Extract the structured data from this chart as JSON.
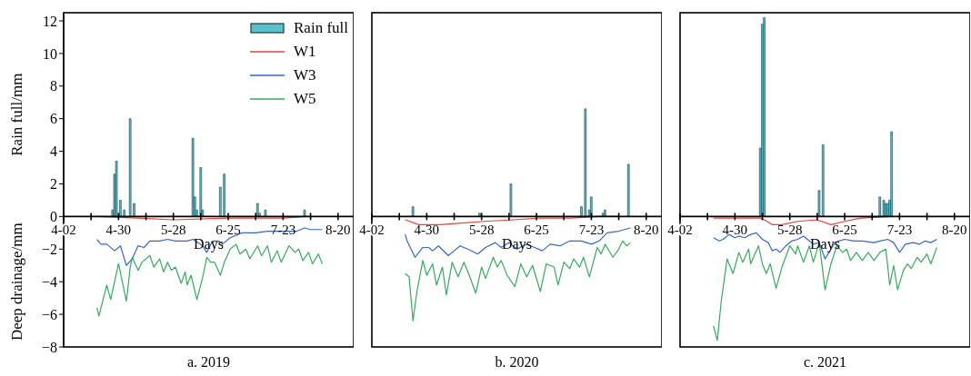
{
  "chart_data": [
    {
      "type": "line",
      "title": "a. 2019",
      "xlabel": "Days",
      "ylabel": "Rain full/mm",
      "annotations": [
        "Deep drainage/mm"
      ],
      "legend": "top right",
      "xlim": [
        "--04-02",
        "--08-28"
      ],
      "xticks": [
        {
          "value": "--04-02",
          "label": "4-02"
        },
        {
          "value": "--04-16",
          "label": null
        },
        {
          "value": "--04-30",
          "label": "4-30"
        },
        {
          "value": "--05-14",
          "label": null
        },
        {
          "value": "--05-28",
          "label": "5-28"
        },
        {
          "value": "--06-11",
          "label": null
        },
        {
          "value": "--06-25",
          "label": "6-25"
        },
        {
          "value": "--07-09",
          "label": null
        },
        {
          "value": "--07-23",
          "label": "7-23"
        },
        {
          "value": "--08-06",
          "label": null
        },
        {
          "value": "--08-20",
          "label": "8-20"
        }
      ],
      "ylim": [
        -8,
        12.5
      ],
      "yticks": [
        -8,
        -6,
        -4,
        -2,
        0,
        2,
        4,
        6,
        8,
        10,
        12
      ],
      "series": [
        {
          "name": "Rain full",
          "type": "bar",
          "color": "#5bc0cc",
          "x": [
            "--04-27",
            "--04-28",
            "--04-29",
            "--05-01",
            "--05-03",
            "--05-06",
            "--05-08",
            "--06-07",
            "--06-08",
            "--06-09",
            "--06-11",
            "--06-12",
            "--06-21",
            "--06-23",
            "--07-10",
            "--07-11",
            "--07-14",
            "--08-03"
          ],
          "values": [
            0.4,
            2.6,
            3.4,
            1.0,
            0.4,
            6.0,
            0.8,
            4.8,
            1.2,
            0.4,
            3.0,
            0.4,
            1.8,
            2.6,
            0.8,
            0.2,
            0.4,
            0.4
          ]
        },
        {
          "name": "W1",
          "color": "#e8423a",
          "x": [
            "--04-19",
            "--05-10",
            "--05-28",
            "--06-25",
            "--07-23",
            "--08-04"
          ],
          "values": [
            0,
            -0.1,
            -0.2,
            -0.1,
            -0.1,
            0
          ]
        },
        {
          "name": "W3",
          "color": "#3a66c4",
          "x": [
            "--04-19",
            "--04-21",
            "--04-24",
            "--04-28",
            "--05-01",
            "--05-04",
            "--05-07",
            "--05-10",
            "--05-13",
            "--05-16",
            "--05-21",
            "--05-25",
            "--05-29",
            "--06-04",
            "--06-07",
            "--06-12",
            "--06-14",
            "--06-17",
            "--06-20",
            "--06-22",
            "--06-26",
            "--07-02",
            "--07-09",
            "--07-15",
            "--07-23",
            "--07-30",
            "--08-03",
            "--08-06",
            "--08-12"
          ],
          "values": [
            -1.4,
            -1.7,
            -1.7,
            -2.1,
            -1.8,
            -3.0,
            -2.6,
            -1.8,
            -1.9,
            -1.5,
            -1.5,
            -1.4,
            -1.5,
            -1.5,
            -1.4,
            -1.8,
            -2.2,
            -1.5,
            -1.5,
            -1.7,
            -1.3,
            -1.0,
            -1.0,
            -0.9,
            -0.9,
            -0.9,
            -0.7,
            -0.8,
            -0.8
          ]
        },
        {
          "name": "W5",
          "color": "#3aa860",
          "x": [
            "--04-19",
            "--04-20",
            "--04-24",
            "--04-26",
            "--04-30",
            "--05-04",
            "--05-06",
            "--05-07",
            "--05-10",
            "--05-12",
            "--05-16",
            "--05-18",
            "--05-21",
            "--05-23",
            "--05-25",
            "--05-27",
            "--05-29",
            "--06-01",
            "--06-03",
            "--06-04",
            "--06-06",
            "--06-09",
            "--06-12",
            "--06-14",
            "--06-16",
            "--06-18",
            "--06-21",
            "--06-23",
            "--06-26",
            "--06-29",
            "--07-01",
            "--07-04",
            "--07-06",
            "--07-10",
            "--07-12",
            "--07-15",
            "--07-17",
            "--07-20",
            "--07-22",
            "--07-26",
            "--07-29",
            "--07-31",
            "--08-02",
            "--08-05",
            "--08-07",
            "--08-10",
            "--08-12"
          ],
          "values": [
            -5.6,
            -6.1,
            -4.2,
            -5.1,
            -2.9,
            -5.2,
            -3.1,
            -2.5,
            -3.3,
            -2.8,
            -2.4,
            -3.1,
            -2.6,
            -3.4,
            -2.8,
            -3.3,
            -3.1,
            -4.1,
            -3.4,
            -4.2,
            -3.6,
            -5.1,
            -3.7,
            -2.5,
            -2.8,
            -2.8,
            -3.6,
            -2.8,
            -2.0,
            -1.7,
            -2.3,
            -2.0,
            -2.6,
            -1.8,
            -2.4,
            -1.8,
            -2.8,
            -2.1,
            -2.8,
            -1.8,
            -2.2,
            -2.0,
            -2.7,
            -2.2,
            -2.9,
            -2.3,
            -2.9
          ]
        }
      ]
    },
    {
      "type": "line",
      "title": "b. 2020",
      "xlabel": "Days",
      "tick_labels": "x",
      "xlim": [
        "--04-02",
        "--08-28"
      ],
      "xticks": [
        {
          "value": "--04-02",
          "label": "4-02"
        },
        {
          "value": "--04-16",
          "label": null
        },
        {
          "value": "--04-30",
          "label": "4-30"
        },
        {
          "value": "--05-14",
          "label": null
        },
        {
          "value": "--05-28",
          "label": "5-28"
        },
        {
          "value": "--06-11",
          "label": null
        },
        {
          "value": "--06-25",
          "label": "6-25"
        },
        {
          "value": "--07-09",
          "label": null
        },
        {
          "value": "--07-23",
          "label": "7-23"
        },
        {
          "value": "--08-06",
          "label": null
        },
        {
          "value": "--08-20",
          "label": "8-20"
        }
      ],
      "ylim": [
        -8,
        12.5
      ],
      "yticks": [
        -8,
        -6,
        -4,
        -2,
        0,
        2,
        4,
        6,
        8,
        10,
        12
      ],
      "series": [
        {
          "type": "bar",
          "color": "#5bc0cc",
          "x": [
            "--04-23",
            "--05-27",
            "--06-12",
            "--07-18",
            "--07-20",
            "--07-22",
            "--07-23",
            "--07-29",
            "--07-30",
            "--08-11"
          ],
          "values": [
            0.6,
            0.2,
            2.0,
            0.6,
            6.6,
            0.4,
            1.2,
            0.2,
            0.4,
            3.2
          ]
        },
        {
          "color": "#e8423a",
          "x": [
            "--04-19",
            "--04-26",
            "--05-07",
            "--05-29",
            "--06-13",
            "--06-27",
            "--07-12",
            "--07-27",
            "--08-06"
          ],
          "values": [
            -0.2,
            -0.5,
            -0.5,
            -0.3,
            -0.2,
            -0.1,
            -0.1,
            0,
            0
          ]
        },
        {
          "color": "#3a66c4",
          "x": [
            "--04-19",
            "--04-20",
            "--04-22",
            "--04-24",
            "--04-28",
            "--05-01",
            "--05-03",
            "--05-06",
            "--05-11",
            "--05-14",
            "--05-17",
            "--05-21",
            "--05-26",
            "--05-30",
            "--06-04",
            "--06-07",
            "--06-11",
            "--06-15",
            "--06-20",
            "--06-24",
            "--06-28",
            "--07-02",
            "--07-07",
            "--07-12",
            "--07-18",
            "--07-23",
            "--07-27",
            "--07-31",
            "--08-06",
            "--08-12"
          ],
          "values": [
            -1.1,
            -1.5,
            -2.0,
            -2.5,
            -1.9,
            -1.9,
            -2.1,
            -1.8,
            -2.4,
            -2.1,
            -1.8,
            -2.0,
            -2.3,
            -1.9,
            -1.6,
            -1.9,
            -1.6,
            -2.0,
            -1.7,
            -1.9,
            -2.1,
            -1.7,
            -1.8,
            -1.5,
            -1.5,
            -1.7,
            -1.5,
            -1.0,
            -0.9,
            -0.7
          ]
        },
        {
          "color": "#3aa860",
          "x": [
            "--04-19",
            "--04-21",
            "--04-23",
            "--04-25",
            "--04-28",
            "--04-30",
            "--05-03",
            "--05-05",
            "--05-08",
            "--05-10",
            "--05-13",
            "--05-16",
            "--05-19",
            "--05-22",
            "--05-25",
            "--05-28",
            "--05-30",
            "--06-03",
            "--06-05",
            "--06-07",
            "--06-10",
            "--06-14",
            "--06-17",
            "--06-20",
            "--06-23",
            "--06-27",
            "--06-30",
            "--07-04",
            "--07-06",
            "--07-09",
            "--07-12",
            "--07-14",
            "--07-17",
            "--07-19",
            "--07-22",
            "--07-26",
            "--07-28",
            "--07-30",
            "--08-03",
            "--08-06",
            "--08-08",
            "--08-10",
            "--08-12"
          ],
          "values": [
            -3.5,
            -3.7,
            -6.4,
            -4.6,
            -2.7,
            -3.6,
            -2.9,
            -4.2,
            -3.1,
            -4.8,
            -2.8,
            -3.7,
            -2.8,
            -3.7,
            -4.7,
            -3.1,
            -3.8,
            -2.5,
            -3.1,
            -2.7,
            -3.6,
            -4.3,
            -2.9,
            -3.7,
            -3.0,
            -4.6,
            -2.9,
            -3.1,
            -4.2,
            -2.8,
            -3.2,
            -2.6,
            -3.1,
            -2.5,
            -3.7,
            -1.9,
            -2.3,
            -1.7,
            -2.5,
            -2.0,
            -1.5,
            -1.8,
            -1.6
          ]
        }
      ]
    },
    {
      "type": "line",
      "title": "c. 2021",
      "xlabel": "Days",
      "tick_labels": "x",
      "xlim": [
        "--04-02",
        "--08-28"
      ],
      "xticks": [
        {
          "value": "--04-02",
          "label": "4-02"
        },
        {
          "value": "--04-16",
          "label": null
        },
        {
          "value": "--04-30",
          "label": "4-30"
        },
        {
          "value": "--05-14",
          "label": null
        },
        {
          "value": "--05-28",
          "label": "5-28"
        },
        {
          "value": "--06-11",
          "label": null
        },
        {
          "value": "--06-25",
          "label": "6-25"
        },
        {
          "value": "--07-09",
          "label": null
        },
        {
          "value": "--07-23",
          "label": "7-23"
        },
        {
          "value": "--08-06",
          "label": null
        },
        {
          "value": "--08-20",
          "label": "8-20"
        }
      ],
      "ylim": [
        -8,
        12.5
      ],
      "yticks": [
        -8,
        -6,
        -4,
        -2,
        0,
        2,
        4,
        6,
        8,
        10,
        12
      ],
      "series": [
        {
          "type": "bar",
          "color": "#5bc0cc",
          "x": [
            "--05-13",
            "--05-14",
            "--05-15",
            "--06-12",
            "--06-14",
            "--07-13",
            "--07-15",
            "--07-16",
            "--07-17",
            "--07-18",
            "--07-19"
          ],
          "values": [
            4.2,
            11.8,
            12.2,
            1.6,
            4.4,
            1.2,
            1.0,
            0.8,
            0.8,
            1.0,
            5.2
          ]
        },
        {
          "color": "#e8423a",
          "x": [
            "--04-19",
            "--05-13",
            "--05-15",
            "--05-19",
            "--05-24",
            "--06-01",
            "--06-11",
            "--06-18",
            "--06-25",
            "--07-03",
            "--07-19"
          ],
          "values": [
            -0.1,
            -0.1,
            -0.2,
            -0.5,
            -0.5,
            -0.3,
            -0.2,
            -0.5,
            -0.3,
            -0.1,
            0
          ]
        },
        {
          "color": "#3a66c4",
          "x": [
            "--04-19",
            "--04-22",
            "--04-24",
            "--04-27",
            "--04-30",
            "--05-02",
            "--05-05",
            "--05-08",
            "--05-11",
            "--05-14",
            "--05-17",
            "--05-19",
            "--05-21",
            "--05-23",
            "--05-26",
            "--05-29",
            "--06-01",
            "--06-04",
            "--06-06",
            "--06-09",
            "--06-12",
            "--06-15",
            "--06-17",
            "--06-20",
            "--06-22",
            "--06-25",
            "--06-30",
            "--07-04",
            "--07-10",
            "--07-13",
            "--07-17",
            "--07-20",
            "--07-23",
            "--07-26",
            "--07-30",
            "--08-02",
            "--08-05",
            "--08-08",
            "--08-11"
          ],
          "values": [
            -1.3,
            -1.5,
            -1.4,
            -1.1,
            -1.3,
            -1.2,
            -1.3,
            -1.1,
            -1.0,
            -1.4,
            -1.6,
            -2.1,
            -2.0,
            -2.2,
            -1.8,
            -1.5,
            -1.4,
            -1.2,
            -1.4,
            -1.7,
            -1.6,
            -2.6,
            -2.2,
            -1.6,
            -1.5,
            -1.4,
            -1.5,
            -1.5,
            -1.6,
            -1.5,
            -1.4,
            -1.6,
            -2.2,
            -1.7,
            -1.6,
            -1.7,
            -1.5,
            -1.6,
            -1.4
          ]
        },
        {
          "color": "#3aa860",
          "x": [
            "--04-19",
            "--04-21",
            "--04-23",
            "--04-26",
            "--04-29",
            "--05-02",
            "--05-04",
            "--05-07",
            "--05-08",
            "--05-12",
            "--05-14",
            "--05-16",
            "--05-18",
            "--05-21",
            "--05-24",
            "--05-28",
            "--05-31",
            "--06-01",
            "--06-04",
            "--06-07",
            "--06-09",
            "--06-12",
            "--06-15",
            "--06-18",
            "--06-21",
            "--06-24",
            "--06-26",
            "--06-28",
            "--07-01",
            "--07-04",
            "--07-07",
            "--07-10",
            "--07-13",
            "--07-16",
            "--07-18",
            "--07-20",
            "--07-22",
            "--07-25",
            "--07-27",
            "--07-29",
            "--08-01",
            "--08-03",
            "--08-06",
            "--08-08",
            "--08-11"
          ],
          "values": [
            -6.7,
            -7.6,
            -5.2,
            -2.6,
            -3.5,
            -2.2,
            -2.8,
            -2.0,
            -2.9,
            -1.8,
            -2.9,
            -3.5,
            -2.9,
            -4.4,
            -3.1,
            -1.8,
            -2.3,
            -1.8,
            -2.8,
            -1.8,
            -2.8,
            -1.6,
            -4.5,
            -2.9,
            -1.8,
            -2.2,
            -2.0,
            -2.7,
            -2.2,
            -2.7,
            -2.2,
            -2.7,
            -2.2,
            -2.0,
            -4.2,
            -3.0,
            -4.5,
            -3.3,
            -2.9,
            -3.2,
            -2.5,
            -2.8,
            -2.3,
            -2.9,
            -1.9
          ]
        }
      ]
    }
  ]
}
